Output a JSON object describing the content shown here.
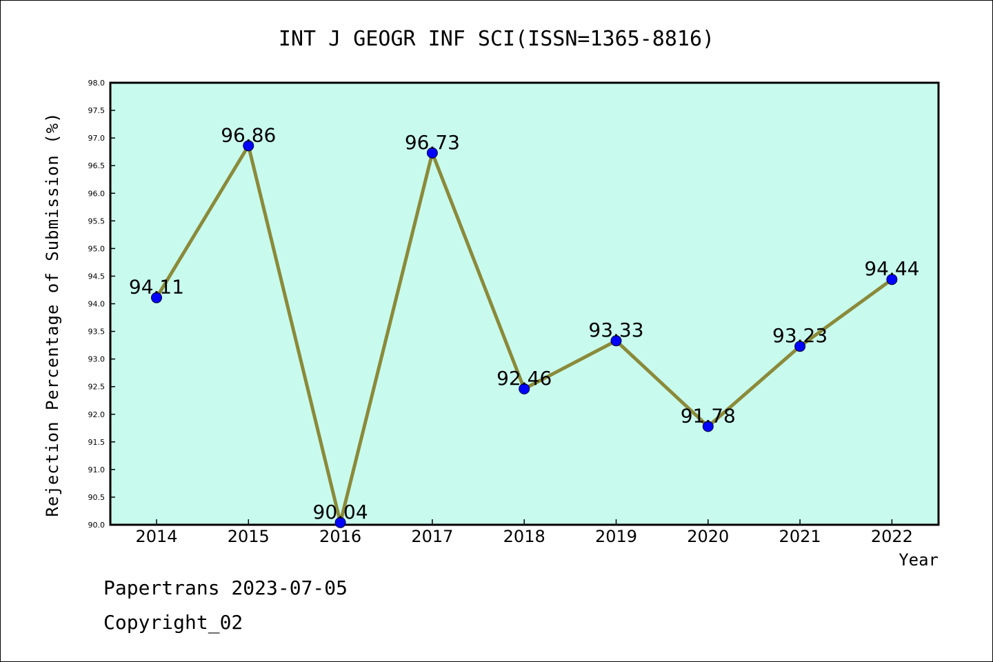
{
  "chart_data": {
    "type": "line",
    "title": "INT J GEOGR INF SCI(ISSN=1365-8816)",
    "xlabel": "Year",
    "ylabel": "Rejection Percentage of Submission (%)",
    "categories": [
      "2014",
      "2015",
      "2016",
      "2017",
      "2018",
      "2019",
      "2020",
      "2021",
      "2022"
    ],
    "values": [
      94.11,
      96.86,
      90.04,
      96.73,
      92.46,
      93.33,
      91.78,
      93.23,
      94.44
    ],
    "value_labels": [
      "94.11",
      "96.86",
      "90.04",
      "96.73",
      "92.46",
      "93.33",
      "91.78",
      "93.23",
      "94.44"
    ],
    "ylim": [
      90.0,
      98.0
    ],
    "yticks": [
      "90.0",
      "90.5",
      "91.0",
      "91.5",
      "92.0",
      "92.5",
      "93.0",
      "93.5",
      "94.0",
      "94.5",
      "95.0",
      "95.5",
      "96.0",
      "96.5",
      "97.0",
      "97.5",
      "98.0"
    ],
    "grid": false,
    "colors": {
      "plot_background": "#c8fbee",
      "line": "#8b8a3a",
      "marker": "#0000ff"
    }
  },
  "footer": {
    "line1": "Papertrans 2023-07-05",
    "line2": "Copyright_02"
  }
}
